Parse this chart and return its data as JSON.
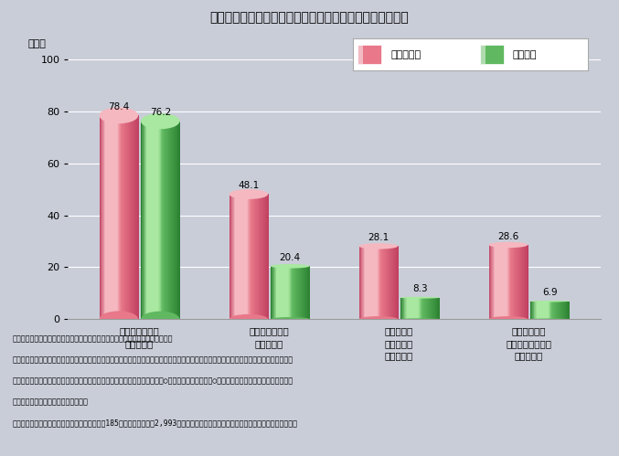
{
  "title": "第３－３－２図　活動組織の中で会員が果たす様々な役割",
  "categories": [
    "活動をする人が\n会員である",
    "支援する個人が\n会員である",
    "サービスを\n受ける人が\n会員である",
    "支援する市民\n団体・企業などが\n会員である"
  ],
  "npo_values": [
    78.4,
    48.1,
    28.1,
    28.6
  ],
  "nii_values": [
    76.2,
    20.4,
    8.3,
    6.9
  ],
  "bar_width": 0.3,
  "ylim": [
    0,
    100
  ],
  "yticks": [
    0,
    20,
    40,
    60,
    80,
    100
  ],
  "ylabel": "（％）",
  "legend_npo": "ＮＰＯ法人",
  "legend_nii": "任意団体",
  "bg_color": "#c9cdd8",
  "plot_bg_color": "#c9cdd8",
  "npo_color_light": "#f5b8c0",
  "npo_color_mid": "#e8788a",
  "npo_color_dark": "#c04060",
  "nii_color_light": "#a8e8a0",
  "nii_color_mid": "#60b860",
  "nii_color_dark": "#2a8030",
  "note_line1": "（備考）　１．内閣府「市民活動団体等基本調査」（２００１年）により作成。",
  "note_line2": "　　　　　２．「貴団体に会員制度はありますか。」という問に対して「ある」と回答した団体に対して更に「貴団体では、どのような人を",
  "note_line3": "　　　　　　「会員」としていますか。次の中からあてはまるものすべてに○をつけてください。（○印はいくつでも）」と尋ねた問に対し",
  "note_line4": "　　　　　　て回答した団体の割合。",
  "note_line5": "　　　　　３．回答した団体は、ＮＰＯ法人は185団体、任意団体は2,993団体（「無回答」及び「その他」は図中への記載を省略）。"
}
